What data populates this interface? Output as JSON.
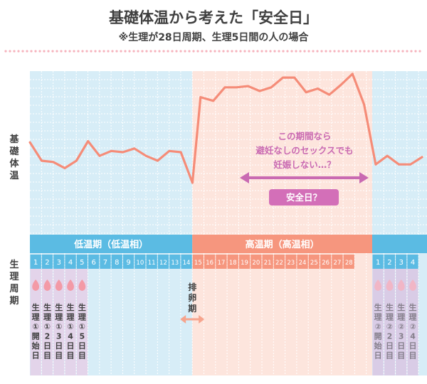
{
  "header": {
    "title": "基礎体温から考えた「安全日」",
    "subtitle": "※生理が28日周期、生理5日間の人の場合"
  },
  "side_labels": {
    "temperature": "基礎体温",
    "cycle": "生理周期"
  },
  "phases": {
    "low": "低温期（低温相）",
    "high": "高温期（高温相）"
  },
  "annotation": {
    "lines": [
      "この期間なら",
      "避妊なしのセックスでも",
      "妊娠しない…？"
    ],
    "tag": "安全日？"
  },
  "ovulation_label": "排卵期",
  "colors": {
    "line": "#f58c78",
    "low_band": "#5bbbe3",
    "high_band": "#f6967e",
    "low_bg": "#d7edf7",
    "high_bg": "#fde5dd",
    "period1": "#e3d4ea",
    "period2": "#d9cce6",
    "drop": "#f39aa6",
    "arrow": "#c96ab2",
    "tag": "#d36fb8",
    "ovulation_arrow": "#f6a48d",
    "dots": "#f6b3bd",
    "text": "#3f3f3f"
  },
  "chart_data": {
    "type": "line",
    "x_days": [
      1,
      2,
      3,
      4,
      5,
      6,
      7,
      8,
      9,
      10,
      11,
      12,
      13,
      14,
      15,
      16,
      17,
      18,
      19,
      20,
      21,
      22,
      23,
      24,
      25,
      26,
      27,
      28,
      1,
      2,
      3,
      4
    ],
    "temperature_index": [
      58,
      43,
      42,
      37,
      43,
      59,
      47,
      51,
      50,
      53,
      47,
      43,
      51,
      50,
      25,
      95,
      92,
      103,
      103,
      104,
      100,
      103,
      111,
      111,
      99,
      102,
      97,
      105,
      114,
      89,
      40,
      47,
      40,
      40,
      46
    ],
    "temperature_x": [
      0.5,
      1.5,
      2.5,
      3.5,
      4.5,
      5.5,
      6.5,
      7.5,
      8.5,
      9.5,
      10.5,
      11.5,
      12.5,
      13.5,
      14.5,
      15.2,
      16.3,
      17.3,
      18.3,
      19.3,
      20.3,
      21.3,
      22.3,
      23.3,
      24.3,
      25.3,
      26.3,
      27.3,
      28.3,
      29.3,
      30.3,
      31.3,
      32.3,
      33.3,
      34.3
    ],
    "note": "",
    "period_cycle1": [
      {
        "day": 1,
        "label": "生理①開始日"
      },
      {
        "day": 2,
        "label": "生理①2日目"
      },
      {
        "day": 3,
        "label": "生理①3日目"
      },
      {
        "day": 4,
        "label": "生理①4日目"
      },
      {
        "day": 5,
        "label": "生理①5日目"
      }
    ],
    "period_cycle2": [
      {
        "day": 1,
        "label": "生理②開始日"
      },
      {
        "day": 2,
        "label": "生理②2日目"
      },
      {
        "day": 3,
        "label": "生理②3日目"
      },
      {
        "day": 4,
        "label": "生理②4日目"
      }
    ],
    "ovulation_day": 14,
    "safe_day_range": [
      17,
      28
    ]
  }
}
